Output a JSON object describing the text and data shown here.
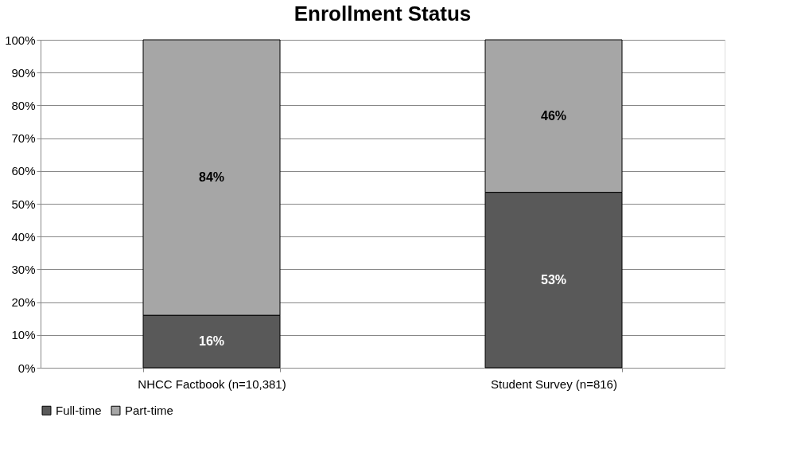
{
  "chart_data": {
    "type": "bar",
    "title": "Enrollment Status",
    "stacked": true,
    "categories": [
      "NHCC Factbook (n=10,381)",
      "Student Survey (n=816)"
    ],
    "series": [
      {
        "name": "Full-time",
        "color": "#595959",
        "values": [
          16,
          53.5
        ],
        "value_labels": [
          "16%",
          "53%"
        ]
      },
      {
        "name": "Part-time",
        "color": "#a6a6a6",
        "values": [
          84,
          46.5
        ],
        "value_labels": [
          "84%",
          "46%"
        ]
      }
    ],
    "ylim": [
      0,
      100
    ],
    "yticks": [
      {
        "value": 0,
        "label": "0%"
      },
      {
        "value": 10,
        "label": "10%"
      },
      {
        "value": 20,
        "label": "20%"
      },
      {
        "value": 30,
        "label": "30%"
      },
      {
        "value": 40,
        "label": "40%"
      },
      {
        "value": 50,
        "label": "50%"
      },
      {
        "value": 60,
        "label": "60%"
      },
      {
        "value": 70,
        "label": "70%"
      },
      {
        "value": 80,
        "label": "80%"
      },
      {
        "value": 90,
        "label": "90%"
      },
      {
        "value": 100,
        "label": "100%"
      }
    ],
    "grid": "y",
    "legend": "bottom"
  }
}
